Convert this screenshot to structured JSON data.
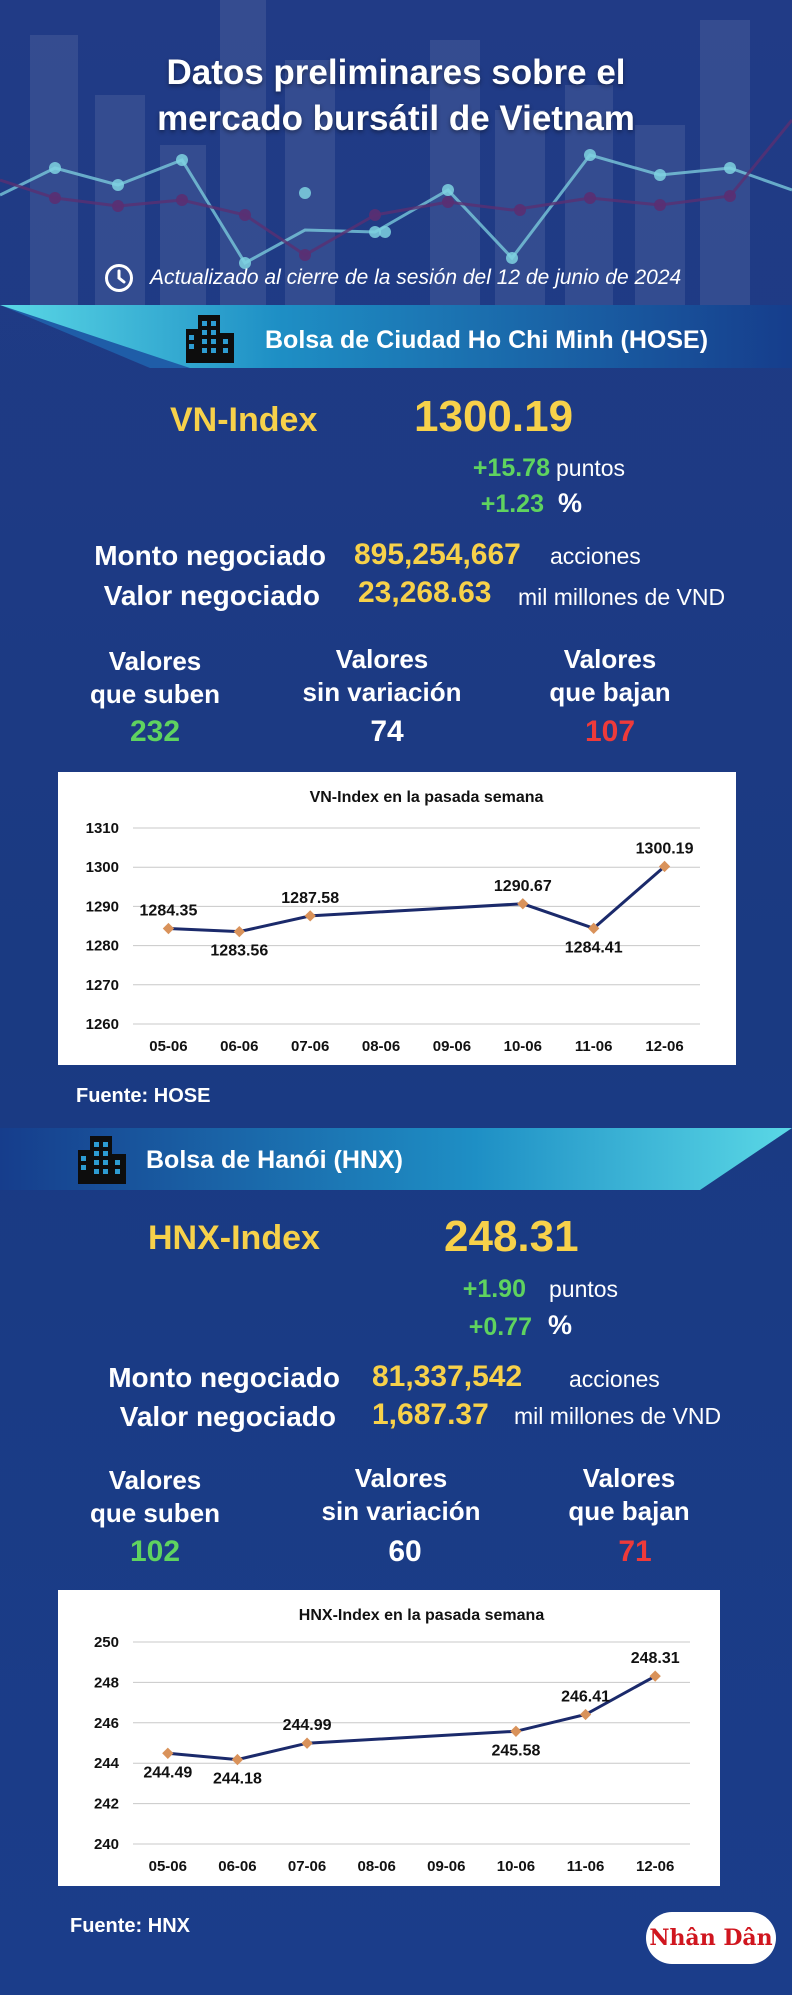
{
  "header": {
    "title_line1": "Datos preliminares sobre el",
    "title_line2": "mercado bursátil de Vietnam",
    "update_text": "Actualizado al cierre de la sesión del 12 de junio de 2024"
  },
  "hose": {
    "exchange_name": "Bolsa de Ciudad Ho Chi Minh (HOSE)",
    "index_name": "VN-Index",
    "index_value": "1300.19",
    "change_points": "+15.78",
    "points_unit": "puntos",
    "change_percent": "+1.23",
    "percent_unit": "%",
    "volume_label": "Monto negociado",
    "volume_value": "895,254,667",
    "volume_unit": "acciones",
    "value_label": "Valor negociado",
    "value_value": "23,268.63",
    "value_unit": "mil millones de VND",
    "up_label_1": "Valores",
    "up_label_2": "que suben",
    "up_count": "232",
    "flat_label_1": "Valores",
    "flat_label_2": "sin variación",
    "flat_count": "74",
    "down_label_1": "Valores",
    "down_label_2": "que bajan",
    "down_count": "107",
    "source": "Fuente: HOSE"
  },
  "hnx": {
    "exchange_name": "Bolsa de Hanói (HNX)",
    "index_name": "HNX-Index",
    "index_value": "248.31",
    "change_points": "+1.90",
    "points_unit": "puntos",
    "change_percent": "+0.77",
    "percent_unit": "%",
    "volume_label": "Monto negociado",
    "volume_value": "81,337,542",
    "volume_unit": "acciones",
    "value_label": "Valor negociado",
    "value_value": "1,687.37",
    "value_unit": "mil millones de VND",
    "up_label_1": "Valores",
    "up_label_2": "que suben",
    "up_count": "102",
    "flat_label_1": "Valores",
    "flat_label_2": "sin variación",
    "flat_count": "60",
    "down_label_1": "Valores",
    "down_label_2": "que bajan",
    "down_count": "71",
    "source": "Fuente:  HNX"
  },
  "logo_text": "Nhân Dân",
  "colors": {
    "background": "#1a3a82",
    "accent_yellow": "#f7d14a",
    "up_green": "#5fd35f",
    "down_red": "#ee3a3a",
    "banner_cyan": "#3fc8dc",
    "line_navy": "#1b2a6b",
    "marker_orange": "#d9925a"
  },
  "chart_data": [
    {
      "type": "line",
      "title": "VN-Index en la pasada semana",
      "categories": [
        "05-06",
        "06-06",
        "07-06",
        "08-06",
        "09-06",
        "10-06",
        "11-06",
        "12-06"
      ],
      "points": [
        {
          "x": "05-06",
          "y": 1284.35,
          "label": "1284.35"
        },
        {
          "x": "06-06",
          "y": 1283.56,
          "label": "1283.56"
        },
        {
          "x": "07-06",
          "y": 1287.58,
          "label": "1287.58"
        },
        {
          "x": "10-06",
          "y": 1290.67,
          "label": "1290.67"
        },
        {
          "x": "11-06",
          "y": 1284.41,
          "label": "1284.41"
        },
        {
          "x": "12-06",
          "y": 1300.19,
          "label": "1300.19"
        }
      ],
      "yticks": [
        "1260",
        "1270",
        "1280",
        "1290",
        "1300",
        "1310"
      ],
      "ylim": [
        1260,
        1310
      ],
      "grid": true
    },
    {
      "type": "line",
      "title": "HNX-Index en la pasada semana",
      "categories": [
        "05-06",
        "06-06",
        "07-06",
        "08-06",
        "09-06",
        "10-06",
        "11-06",
        "12-06"
      ],
      "points": [
        {
          "x": "05-06",
          "y": 244.49,
          "label": "244.49"
        },
        {
          "x": "06-06",
          "y": 244.18,
          "label": "244.18"
        },
        {
          "x": "07-06",
          "y": 244.99,
          "label": "244.99"
        },
        {
          "x": "10-06",
          "y": 245.58,
          "label": "245.58"
        },
        {
          "x": "11-06",
          "y": 246.41,
          "label": "246.41"
        },
        {
          "x": "12-06",
          "y": 248.31,
          "label": "248.31"
        }
      ],
      "yticks": [
        "240",
        "242",
        "244",
        "246",
        "248",
        "250"
      ],
      "ylim": [
        240,
        250
      ],
      "grid": true
    }
  ]
}
